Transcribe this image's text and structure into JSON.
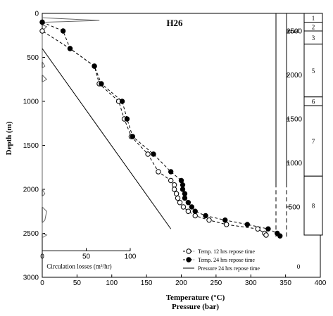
{
  "chart_data": {
    "type": "scatter",
    "title": "H26",
    "xlabel": "Temperature (°C)",
    "xlabel2": "Pressure (bar)",
    "ylabel": "Depth (m)",
    "xlim": [
      0,
      400
    ],
    "ylim": [
      3000,
      0
    ],
    "x_ticks": [
      0,
      50,
      100,
      150,
      200,
      250,
      300,
      350,
      400
    ],
    "y_ticks": [
      0,
      500,
      1000,
      1500,
      2000,
      2500,
      3000
    ],
    "series": [
      {
        "name": "Temp. 12 hrs repose time",
        "marker": "open-circle",
        "points": [
          [
            0,
            100
          ],
          [
            0,
            200
          ],
          [
            40,
            400
          ],
          [
            75,
            600
          ],
          [
            82,
            800
          ],
          [
            110,
            1000
          ],
          [
            118,
            1200
          ],
          [
            128,
            1400
          ],
          [
            152,
            1600
          ],
          [
            167,
            1800
          ],
          [
            185,
            1900
          ],
          [
            190,
            1950
          ],
          [
            190,
            2000
          ],
          [
            193,
            2050
          ],
          [
            195,
            2100
          ],
          [
            198,
            2150
          ],
          [
            203,
            2200
          ],
          [
            210,
            2250
          ],
          [
            220,
            2300
          ],
          [
            240,
            2350
          ],
          [
            265,
            2400
          ],
          [
            310,
            2450
          ],
          [
            320,
            2500
          ],
          [
            322,
            2520
          ]
        ]
      },
      {
        "name": "Temp. 24 hrs repose time",
        "marker": "filled-circle",
        "points": [
          [
            0,
            100
          ],
          [
            30,
            200
          ],
          [
            40,
            400
          ],
          [
            75,
            600
          ],
          [
            85,
            800
          ],
          [
            115,
            1000
          ],
          [
            122,
            1200
          ],
          [
            130,
            1400
          ],
          [
            160,
            1600
          ],
          [
            185,
            1800
          ],
          [
            200,
            1900
          ],
          [
            202,
            1950
          ],
          [
            202,
            2000
          ],
          [
            205,
            2050
          ],
          [
            205,
            2100
          ],
          [
            210,
            2150
          ],
          [
            215,
            2200
          ],
          [
            220,
            2250
          ],
          [
            235,
            2300
          ],
          [
            263,
            2350
          ],
          [
            295,
            2400
          ],
          [
            325,
            2450
          ],
          [
            338,
            2500
          ],
          [
            342,
            2530
          ]
        ]
      },
      {
        "name": "Pressure 24 hrs repose time",
        "marker": "line",
        "points": [
          [
            0,
            400
          ],
          [
            185,
            2450
          ]
        ]
      }
    ],
    "circulation_losses": {
      "label": "Circulation losses (m³/hr)",
      "x_ticks": [
        0,
        50,
        100
      ],
      "xlim": [
        0,
        100
      ],
      "points": [
        [
          0,
          50
        ],
        [
          65,
          80
        ],
        [
          5,
          100
        ],
        [
          0,
          130
        ],
        [
          5,
          150
        ],
        [
          0,
          200
        ],
        [
          0,
          550
        ],
        [
          3,
          600
        ],
        [
          0,
          620
        ],
        [
          0,
          700
        ],
        [
          5,
          750
        ],
        [
          0,
          780
        ],
        [
          0,
          2000
        ],
        [
          3,
          2050
        ],
        [
          0,
          2080
        ],
        [
          0,
          2200
        ],
        [
          5,
          2250
        ],
        [
          3,
          2350
        ],
        [
          0,
          2380
        ],
        [
          0,
          2500
        ],
        [
          5,
          2520
        ],
        [
          0,
          2550
        ]
      ]
    },
    "masl": {
      "label": "masl",
      "ticks": [
        2500,
        2000,
        1500,
        1000,
        500,
        0
      ],
      "label_0": "0"
    },
    "layers": {
      "labels": [
        "1",
        "2",
        "3",
        "5",
        "6",
        "7",
        "8"
      ],
      "bottom_depths": [
        100,
        200,
        350,
        950,
        1050,
        1850,
        2520
      ]
    },
    "legend_position": "bottom-right"
  }
}
